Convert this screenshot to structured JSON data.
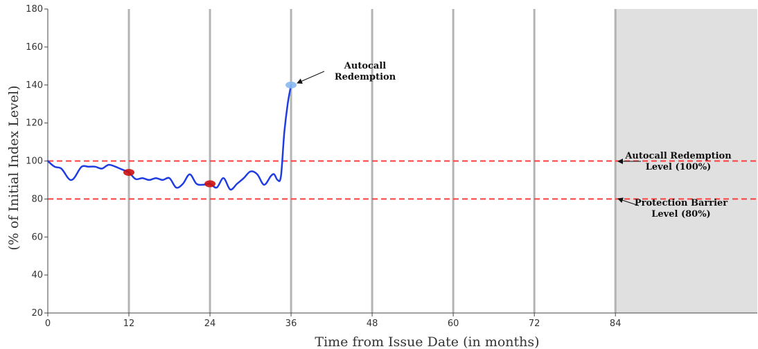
{
  "chart_data": {
    "type": "line",
    "title": "",
    "xlabel": "Time from Issue Date (in months)",
    "ylabel": "(% of Initial Index Level)",
    "xlim": [
      0,
      105
    ],
    "ylim": [
      20,
      180
    ],
    "x_ticks": [
      0,
      12,
      24,
      36,
      48,
      60,
      72,
      84
    ],
    "y_ticks": [
      20,
      40,
      60,
      80,
      100,
      120,
      140,
      160,
      180
    ],
    "vertical_gridlines_at": [
      12,
      24,
      36,
      48,
      60,
      72,
      84
    ],
    "shaded_region": {
      "x_start": 84,
      "x_end": 105,
      "color": "#e0e0e0"
    },
    "grid": false,
    "series": [
      {
        "color": "#1f3de0",
        "x": [
          0,
          1,
          2,
          3,
          3.5,
          4,
          5,
          6,
          7,
          8,
          9,
          10,
          11,
          12,
          13,
          14,
          15,
          16,
          17,
          18,
          19,
          20,
          21,
          22,
          23,
          24,
          25,
          26,
          27,
          28,
          29,
          30,
          31,
          32,
          33,
          33.5,
          34,
          34.5,
          35,
          35.5,
          36
        ],
        "y": [
          100,
          97,
          96,
          91,
          90,
          91.5,
          97,
          97,
          97,
          96,
          98,
          97,
          95.5,
          94,
          90.5,
          91,
          90,
          91,
          90,
          91,
          86,
          88,
          93,
          88,
          87.5,
          88,
          86,
          91,
          85,
          88,
          91,
          94.5,
          93,
          87.5,
          92,
          93,
          90,
          92,
          115,
          130,
          140
        ]
      }
    ],
    "reference_lines": [
      {
        "y": 100,
        "color": "#ff3b3b",
        "style": "dashed"
      },
      {
        "y": 80,
        "color": "#ff3b3b",
        "style": "dashed"
      }
    ],
    "markers": [
      {
        "x": 12,
        "y": 94,
        "color": "#cc1111"
      },
      {
        "x": 24,
        "y": 88,
        "color": "#cc1111"
      },
      {
        "x": 36,
        "y": 140,
        "color": "#8ab8f0"
      }
    ],
    "annotations": [
      {
        "lines": [
          "Autocall",
          "Redemption"
        ],
        "points_to": {
          "x": 36,
          "y": 140
        }
      },
      {
        "lines": [
          "Autocall Redemption",
          "Level (100%)"
        ],
        "points_to": {
          "x": 84,
          "y": 100
        }
      },
      {
        "lines": [
          "Protection Barrier",
          "Level (80%)"
        ],
        "points_to": {
          "x": 84,
          "y": 80
        }
      }
    ]
  }
}
